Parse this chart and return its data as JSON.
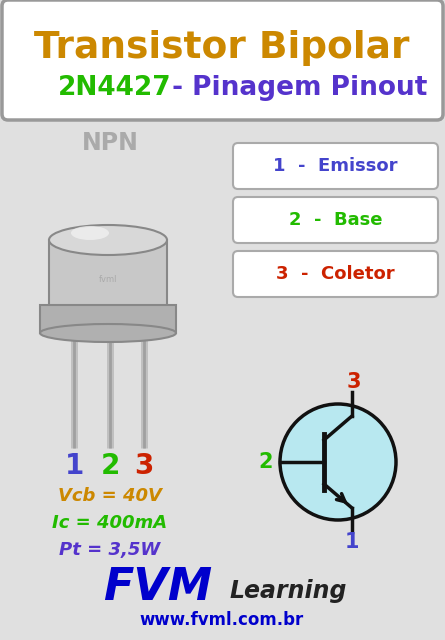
{
  "bg_color": "#e0e0e0",
  "title_box_bg": "#ffffff",
  "title_line1": "Transistor Bipolar",
  "title_line1_color": "#cc8800",
  "title_line2_part1": "2N4427",
  "title_line2_part1_color": "#22bb00",
  "title_line2_part2": " - Pinagem Pinout",
  "title_line2_part2_color": "#5533cc",
  "npn_label": "NPN",
  "npn_color": "#aaaaaa",
  "pin_labels": [
    "1",
    "2",
    "3"
  ],
  "pin_colors": [
    "#4444cc",
    "#22bb00",
    "#cc2200"
  ],
  "specs": [
    "Vcb = 40V",
    "Ic = 400mA",
    "Pt = 3,5W"
  ],
  "spec_colors": [
    "#cc8800",
    "#22bb00",
    "#5533cc"
  ],
  "box_labels": [
    "1  -  Emissor",
    "2  -  Base",
    "3  -  Coletor"
  ],
  "box_label_colors": [
    "#4444cc",
    "#22bb00",
    "#cc2200"
  ],
  "box_bg": "#ffffff",
  "box_border": "#aaaaaa",
  "fvm_color": "#0000cc",
  "learning_color": "#222222",
  "website_color": "#0000cc",
  "circle_fill": "#b8e8f0",
  "circle_edge": "#111111",
  "symbol_color": "#111111",
  "transistor_body_top": "#d8d8d8",
  "transistor_body_mid": "#c8c8c8",
  "transistor_flange": "#b0b0b0",
  "transistor_edge": "#888888",
  "transistor_highlight": "#f0f0f0",
  "pin_wire_color": "#c0c0c0",
  "pin_wire_dark": "#a0a0a0"
}
